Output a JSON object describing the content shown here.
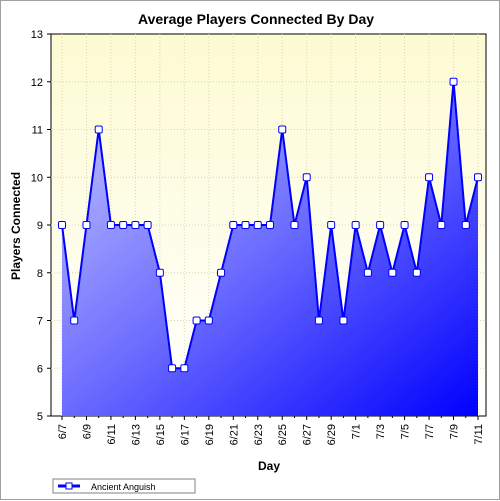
{
  "chart_data": {
    "type": "area",
    "title": "Average Players Connected By Day",
    "xlabel": "Day",
    "ylabel": "Players Connected",
    "ylim": [
      5,
      13
    ],
    "yticks": [
      5,
      6,
      7,
      8,
      9,
      10,
      11,
      12,
      13
    ],
    "x_tick_labels": [
      "6/7",
      "6/9",
      "6/11",
      "6/13",
      "6/15",
      "6/17",
      "6/19",
      "6/21",
      "6/23",
      "6/25",
      "6/27",
      "6/29",
      "7/1",
      "7/3",
      "7/5",
      "7/7",
      "7/9",
      "7/11"
    ],
    "categories": [
      "6/7",
      "6/8",
      "6/9",
      "6/10",
      "6/11",
      "6/12",
      "6/13",
      "6/14",
      "6/15",
      "6/16",
      "6/17",
      "6/18",
      "6/19",
      "6/20",
      "6/21",
      "6/22",
      "6/23",
      "6/24",
      "6/25",
      "6/26",
      "6/27",
      "6/28",
      "6/29",
      "6/30",
      "7/1",
      "7/2",
      "7/3",
      "7/4",
      "7/5",
      "7/6",
      "7/7",
      "7/8",
      "7/9",
      "7/10",
      "7/11"
    ],
    "series": [
      {
        "name": "Ancient Anguish",
        "values": [
          9,
          7,
          9,
          11,
          9,
          9,
          9,
          9,
          8,
          6,
          6,
          7,
          7,
          8,
          9,
          9,
          9,
          9,
          11,
          9,
          10,
          7,
          9,
          7,
          9,
          8,
          9,
          8,
          9,
          8,
          10,
          9,
          12,
          9,
          10
        ]
      }
    ],
    "grid": true,
    "legend": "bottom-left",
    "colors": {
      "line": "#0000ff",
      "fill_dark": "#0000ff",
      "fill_light": "#c8c8ff",
      "plot_bg_top": "#fdfbd2",
      "plot_bg_bottom": "#ffffff",
      "marker_fill": "#ffffff"
    }
  }
}
